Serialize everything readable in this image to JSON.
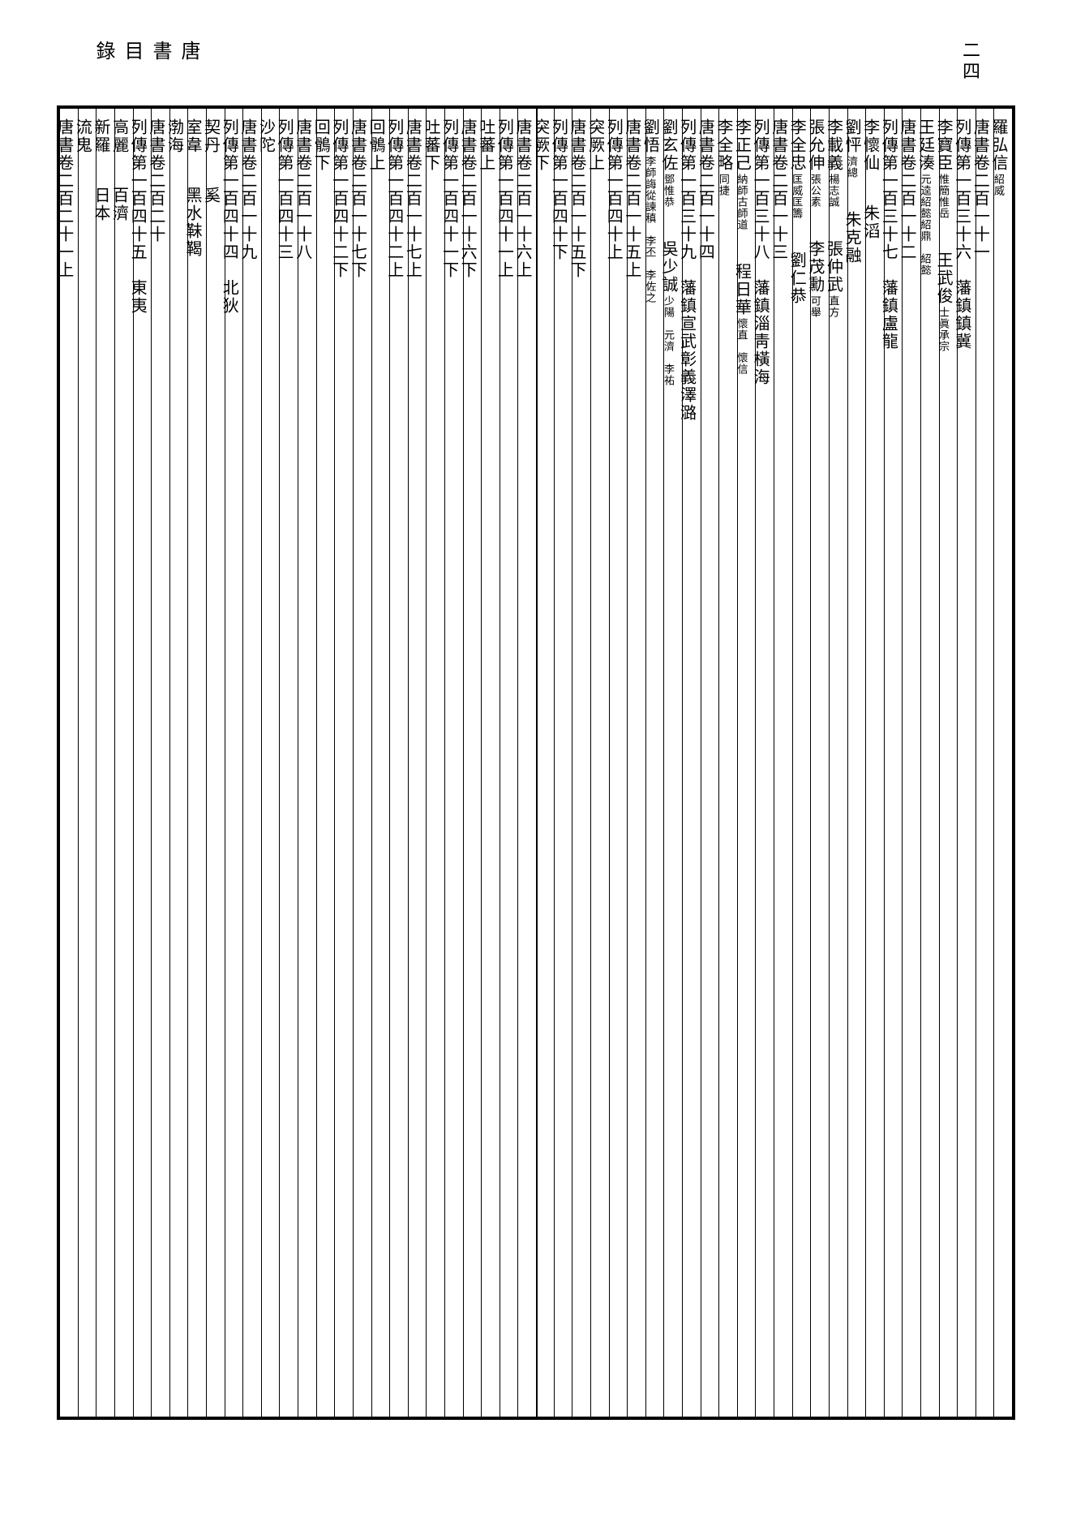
{
  "header": {
    "title": "唐書　目錄",
    "page_number": "二四"
  },
  "right_page": {
    "columns": [
      {
        "main": "羅弘信",
        "small": "紹威"
      },
      {
        "main": "唐書卷二百一十一"
      },
      {
        "main": "列傳第一百三十六　藩鎮鎮冀"
      },
      {
        "main": "李寶臣",
        "small": "惟簡惟岳",
        "sub": "王武俊",
        "sub_small": "士眞承宗"
      },
      {
        "main": "王廷湊",
        "small": "元逵紹懿紹鼎　紹懿"
      },
      {
        "main": "唐書卷二百一十二"
      },
      {
        "main": "列傳第一百三十七　藩鎮盧龍"
      },
      {
        "main": "李懷仙",
        "sub": "朱滔"
      },
      {
        "main": "劉怦",
        "small": "濟總",
        "sub": "朱克融"
      },
      {
        "main": "李載義",
        "small": "楊志誠",
        "sub": "張仲武",
        "sub_small": "直方"
      },
      {
        "main": "張允伸",
        "small": "張公素",
        "sub": "李茂勳",
        "sub_small": "可舉"
      },
      {
        "main": "李全忠",
        "small": "匡威匡籌",
        "sub": "劉仁恭"
      },
      {
        "main": "唐書卷二百一十三"
      },
      {
        "main": "列傳第一百三十八　藩鎮淄靑橫海"
      },
      {
        "main": "李正己",
        "small": "納師古師道",
        "sub": "程日華",
        "sub_small": "懷直　懷信"
      },
      {
        "main": "李全略",
        "small": "同捷"
      },
      {
        "main": "唐書卷二百一十四"
      },
      {
        "main": "列傳第一百三十九　藩鎮宣武彰義澤潞"
      },
      {
        "main": "劉玄佐",
        "small": "鄧惟恭",
        "sub": "吳少誠",
        "sub_small": "少陽　元濟　李祐"
      },
      {
        "main": "劉悟",
        "small": "李師誨從諫稹　李丕　李佐之"
      },
      {
        "main": "唐書卷二百一十五上"
      },
      {
        "main": "列傳第一百四十上"
      },
      {
        "main": "突厥上"
      },
      {
        "main": "唐書卷二百一十五下"
      },
      {
        "main": "列傳第一百四十下"
      },
      {
        "main": "突厥下"
      }
    ]
  },
  "left_page": {
    "columns": [
      {
        "main": "唐書卷二百一十六上"
      },
      {
        "main": "列傳第一百四十一上"
      },
      {
        "main": "吐蕃上"
      },
      {
        "main": "唐書卷二百一十六下"
      },
      {
        "main": "列傳第一百四十一下"
      },
      {
        "main": "吐蕃下"
      },
      {
        "main": "唐書卷二百一十七上"
      },
      {
        "main": "列傳第一百四十二上"
      },
      {
        "main": "回鶻上"
      },
      {
        "main": "唐書卷二百一十七下"
      },
      {
        "main": "列傳第一百四十二下"
      },
      {
        "main": "回鶻下"
      },
      {
        "main": "唐書卷二百一十八"
      },
      {
        "main": "列傳第一百四十三"
      },
      {
        "main": "沙陀"
      },
      {
        "main": "唐書卷二百一十九"
      },
      {
        "main": "列傳第一百四十四　北狄"
      },
      {
        "main": "契丹",
        "sub": "奚"
      },
      {
        "main": "室韋",
        "sub": "黑水靺鞨"
      },
      {
        "main": "渤海"
      },
      {
        "main": "唐書卷二百二十"
      },
      {
        "main": "列傳第一百四十五　東夷"
      },
      {
        "main": "高麗",
        "sub": "百濟"
      },
      {
        "main": "新羅",
        "sub": "日本"
      },
      {
        "main": "流鬼"
      },
      {
        "main": "唐書卷二百二十一上"
      }
    ]
  },
  "style": {
    "background_color": "#ffffff",
    "text_color": "#000000",
    "border_color": "#000000",
    "main_fontsize": 20,
    "small_fontsize": 13,
    "header_fontsize": 24
  }
}
